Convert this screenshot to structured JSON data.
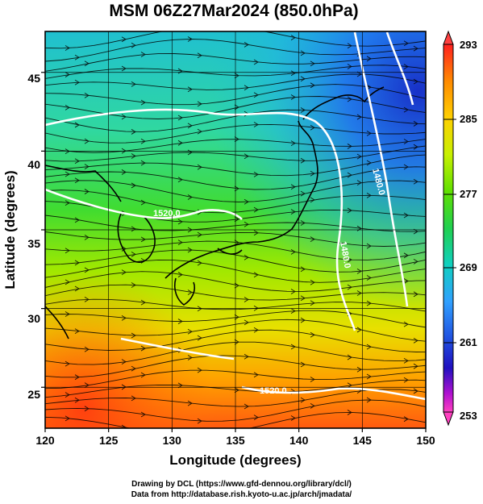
{
  "title": "MSM 06Z27Mar2024 (850.0hPa)",
  "axes": {
    "xlabel": "Longitude (degrees)",
    "ylabel": "Latitude  (degrees)",
    "xticks": [
      "120",
      "125",
      "130",
      "135",
      "140",
      "145",
      "150"
    ],
    "yticks": [
      "25",
      "30",
      "35",
      "40",
      "45"
    ]
  },
  "colorbar": {
    "labels": [
      "293",
      "285",
      "277",
      "269",
      "261",
      "253"
    ],
    "colors": [
      "#ff2020",
      "#ff8a00",
      "#ffd000",
      "#e8f000",
      "#90e000",
      "#20d040",
      "#10d0b0",
      "#30a0ff",
      "#2050e0",
      "#2010c0",
      "#c010c0",
      "#ff40c0"
    ]
  },
  "contour_labels": [
    "1520.0",
    "1480.0",
    "1480.0",
    "1520.0"
  ],
  "credits": {
    "line1": "Drawing by DCL (https://www.gfd-dennou.org/library/dcl/)",
    "line2": "Data from http://database.rish.kyoto-u.ac.jp/arch/jmadata/"
  },
  "chart_data": {
    "type": "heatmap",
    "title": "MSM 06Z27Mar2024 (850.0hPa)",
    "xlabel": "Longitude (degrees)",
    "ylabel": "Latitude  (degrees)",
    "xlim": [
      120,
      150
    ],
    "ylim": [
      22.4,
      47.6
    ],
    "colorbar_range": [
      253,
      293
    ],
    "colorbar_ticks": [
      293,
      285,
      277,
      269,
      261,
      253
    ],
    "contour_levels": [
      1480.0,
      1520.0
    ],
    "grid": true
  }
}
